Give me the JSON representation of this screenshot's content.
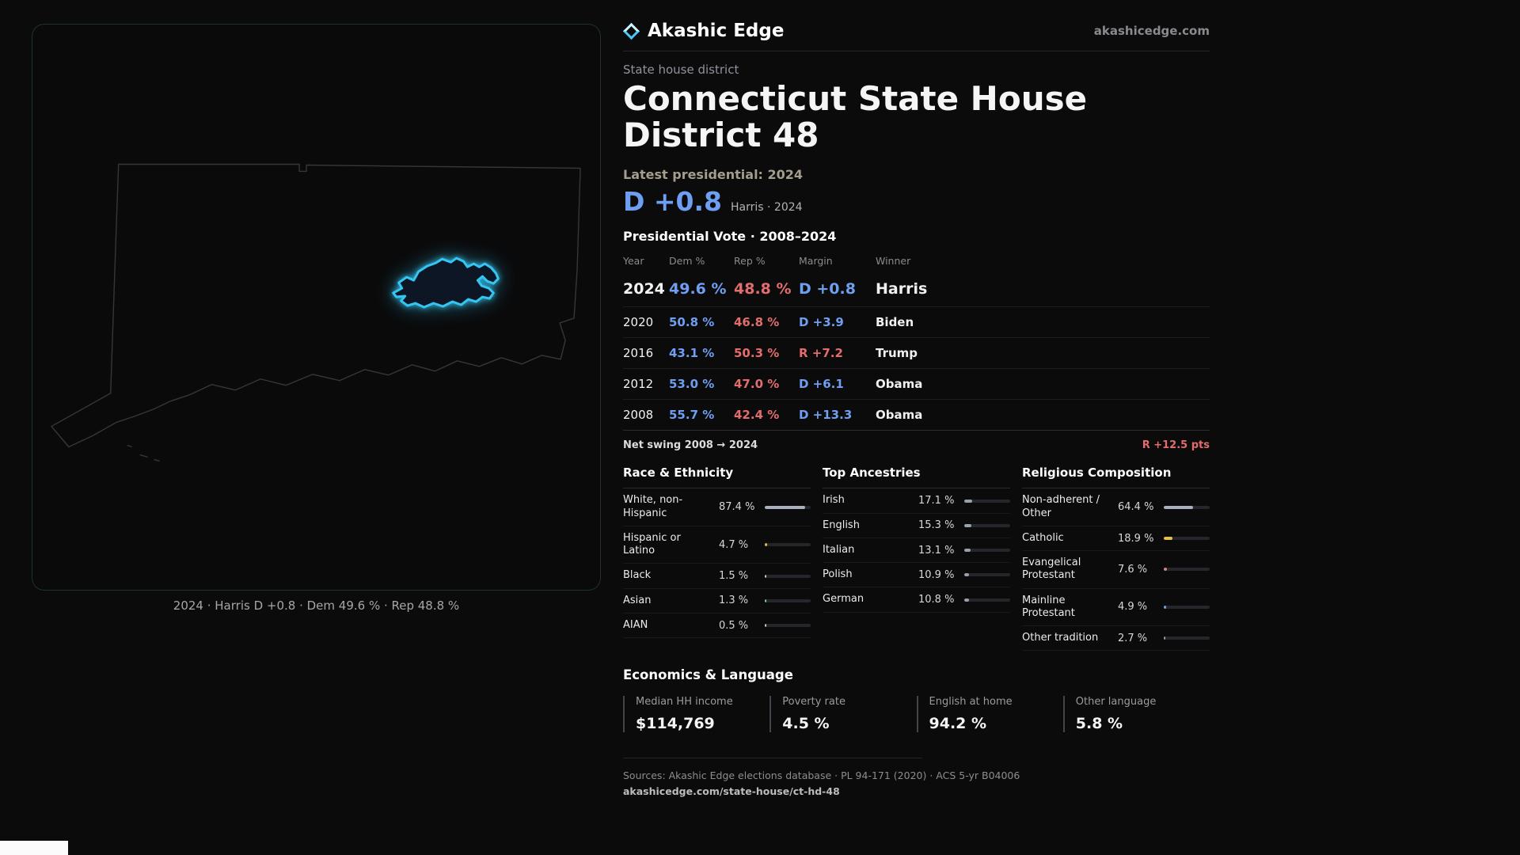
{
  "brand": {
    "logo_icon": "diamond-icon",
    "name": "Akashic Edge",
    "domain": "akashicedge.com"
  },
  "page": {
    "kicker": "State house district",
    "title": "Connecticut State House District 48",
    "latest_label": "Latest presidential: 2024",
    "headline_margin": "D +0.8",
    "headline_detail": "Harris · 2024"
  },
  "map": {
    "caption": "2024 · Harris D +0.8 · Dem 49.6 % · Rep 48.8 %",
    "state": "Connecticut",
    "highlight_color": "#35c5f2"
  },
  "vote_table": {
    "title": "Presidential Vote · 2008–2024",
    "columns": [
      "Year",
      "Dem %",
      "Rep %",
      "Margin",
      "Winner"
    ],
    "rows": [
      {
        "year": "2024",
        "dem": "49.6 %",
        "rep": "48.8 %",
        "margin": "D +0.8",
        "margin_party": "D",
        "winner": "Harris"
      },
      {
        "year": "2020",
        "dem": "50.8 %",
        "rep": "46.8 %",
        "margin": "D +3.9",
        "margin_party": "D",
        "winner": "Biden"
      },
      {
        "year": "2016",
        "dem": "43.1 %",
        "rep": "50.3 %",
        "margin": "R +7.2",
        "margin_party": "R",
        "winner": "Trump"
      },
      {
        "year": "2012",
        "dem": "53.0 %",
        "rep": "47.0 %",
        "margin": "D +6.1",
        "margin_party": "D",
        "winner": "Obama"
      },
      {
        "year": "2008",
        "dem": "55.7 %",
        "rep": "42.4 %",
        "margin": "D +13.3",
        "margin_party": "D",
        "winner": "Obama"
      }
    ],
    "net_swing_label": "Net swing 2008 → 2024",
    "net_swing_value": "R +12.5 pts"
  },
  "demographics": {
    "race": {
      "title": "Race & Ethnicity",
      "rows": [
        {
          "label": "White, non-Hispanic",
          "value": "87.4 %",
          "pct": 87.4,
          "color": "#a9b0bf"
        },
        {
          "label": "Hispanic or Latino",
          "value": "4.7 %",
          "pct": 4.7,
          "color": "#dfb84e"
        },
        {
          "label": "Black",
          "value": "1.5 %",
          "pct": 1.5,
          "color": "#c3c8d2"
        },
        {
          "label": "Asian",
          "value": "1.3 %",
          "pct": 1.3,
          "color": "#8cc79c"
        },
        {
          "label": "AIAN",
          "value": "0.5 %",
          "pct": 0.5,
          "color": "#c7ccd6"
        }
      ]
    },
    "ancestries": {
      "title": "Top Ancestries",
      "rows": [
        {
          "label": "Irish",
          "value": "17.1 %",
          "pct": 17.1,
          "color": "#98a0ac"
        },
        {
          "label": "English",
          "value": "15.3 %",
          "pct": 15.3,
          "color": "#98a0ac"
        },
        {
          "label": "Italian",
          "value": "13.1 %",
          "pct": 13.1,
          "color": "#98a0ac"
        },
        {
          "label": "Polish",
          "value": "10.9 %",
          "pct": 10.9,
          "color": "#98a0ac"
        },
        {
          "label": "German",
          "value": "10.8 %",
          "pct": 10.8,
          "color": "#98a0ac"
        }
      ]
    },
    "religion": {
      "title": "Religious Composition",
      "rows": [
        {
          "label": "Non-adherent / Other",
          "value": "64.4 %",
          "pct": 64.4,
          "color": "#a9b0bf"
        },
        {
          "label": "Catholic",
          "value": "18.9 %",
          "pct": 18.9,
          "color": "#e0c04f"
        },
        {
          "label": "Evangelical Protestant",
          "value": "7.6 %",
          "pct": 7.6,
          "color": "#e77d7d"
        },
        {
          "label": "Mainline Protestant",
          "value": "4.9 %",
          "pct": 4.9,
          "color": "#6f9ff0"
        },
        {
          "label": "Other tradition",
          "value": "2.7 %",
          "pct": 2.7,
          "color": "#9aa2ae"
        }
      ]
    }
  },
  "economics": {
    "title": "Economics & Language",
    "stats": [
      {
        "label": "Median HH income",
        "value": "$114,769"
      },
      {
        "label": "Poverty rate",
        "value": "4.5 %"
      },
      {
        "label": "English at home",
        "value": "94.2 %"
      },
      {
        "label": "Other language",
        "value": "5.8 %"
      }
    ]
  },
  "footer": {
    "sources": "Sources: Akashic Edge elections database · PL 94-171 (2020) · ACS 5-yr B04006",
    "permalink": "akashicedge.com/state-house/ct-hd-48"
  },
  "colors": {
    "dem": "#6f9ff0",
    "rep": "#e36d6d",
    "accent": "#35c5f2",
    "background": "#0b0b0c"
  }
}
